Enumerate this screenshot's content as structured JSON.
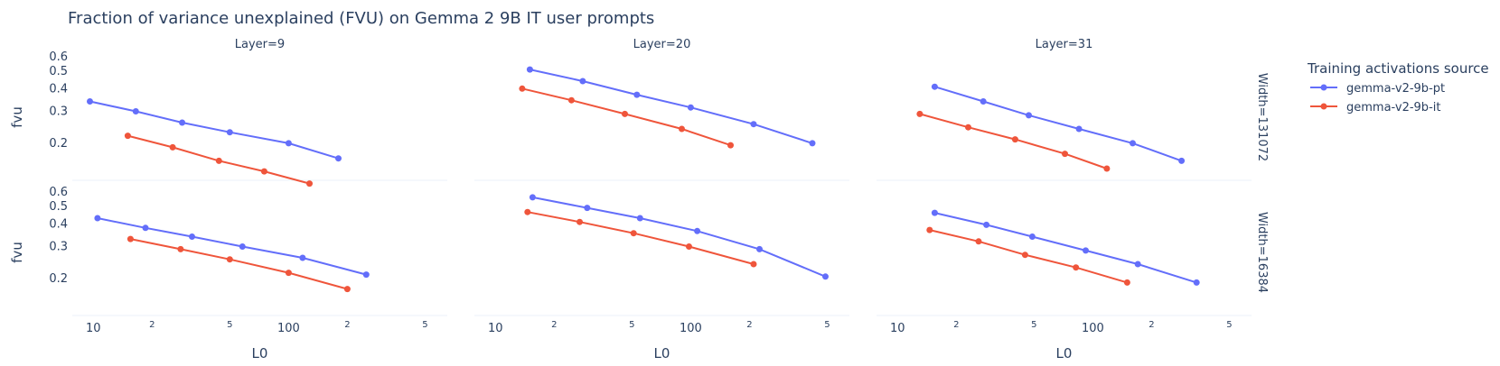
{
  "chart_data": {
    "type": "line",
    "title": "Fraction of variance unexplained (FVU) on Gemma 2 9B IT user prompts",
    "xlabel": "L0",
    "ylabel": "fvu",
    "xscale": "log",
    "yscale": "log",
    "xlim": [
      7.8,
      650
    ],
    "ylim": [
      0.125,
      0.62
    ],
    "x_tick_labels": [
      {
        "value": 10,
        "label": "10"
      },
      {
        "value": 20,
        "label": "2"
      },
      {
        "value": 50,
        "label": "5"
      },
      {
        "value": 100,
        "label": "100"
      },
      {
        "value": 200,
        "label": "2"
      },
      {
        "value": 500,
        "label": "5"
      }
    ],
    "y_tick_labels": [
      {
        "value": 0.2,
        "label": "0.2"
      },
      {
        "value": 0.3,
        "label": "0.3"
      },
      {
        "value": 0.4,
        "label": "0.4"
      },
      {
        "value": 0.5,
        "label": "0.5"
      },
      {
        "value": 0.6,
        "label": "0.6"
      }
    ],
    "legend": {
      "title": "Training activations source",
      "position": "right",
      "entries": [
        {
          "name": "gemma-v2-9b-pt",
          "color": "#636efa"
        },
        {
          "name": "gemma-v2-9b-it",
          "color": "#ef553b"
        }
      ]
    },
    "columns": [
      "Layer=9",
      "Layer=20",
      "Layer=31"
    ],
    "rows": [
      "Width=131072",
      "Width=16384"
    ],
    "panels": [
      {
        "row": 0,
        "col": 0,
        "series": [
          {
            "name": "gemma-v2-9b-pt",
            "x": [
              9.6,
              16.5,
              28.5,
              50,
              100,
              180
            ],
            "y": [
              0.34,
              0.3,
              0.26,
              0.23,
              0.2,
              0.165
            ]
          },
          {
            "name": "gemma-v2-9b-it",
            "x": [
              15,
              25.5,
              44,
              75,
              128
            ],
            "y": [
              0.22,
              0.19,
              0.16,
              0.14,
              0.12
            ]
          }
        ]
      },
      {
        "row": 0,
        "col": 1,
        "series": [
          {
            "name": "gemma-v2-9b-pt",
            "x": [
              15,
              28,
              53,
              100,
              210,
              420
            ],
            "y": [
              0.51,
              0.44,
              0.37,
              0.315,
              0.255,
              0.2
            ]
          },
          {
            "name": "gemma-v2-9b-it",
            "x": [
              13.7,
              24.5,
              46,
              90,
              160
            ],
            "y": [
              0.4,
              0.345,
              0.29,
              0.24,
              0.195
            ]
          }
        ]
      },
      {
        "row": 0,
        "col": 2,
        "series": [
          {
            "name": "gemma-v2-9b-pt",
            "x": [
              15.5,
              27.5,
              47,
              85,
              160,
              285
            ],
            "y": [
              0.41,
              0.34,
              0.285,
              0.24,
              0.2,
              0.16
            ]
          },
          {
            "name": "gemma-v2-9b-it",
            "x": [
              13,
              23,
              40,
              72,
              118
            ],
            "y": [
              0.29,
              0.245,
              0.21,
              0.175,
              0.145
            ]
          }
        ]
      },
      {
        "row": 1,
        "col": 0,
        "series": [
          {
            "name": "gemma-v2-9b-pt",
            "x": [
              10.5,
              18.5,
              32,
              58,
              118,
              250
            ],
            "y": [
              0.43,
              0.38,
              0.34,
              0.3,
              0.26,
              0.21
            ]
          },
          {
            "name": "gemma-v2-9b-it",
            "x": [
              15.5,
              28,
              50,
              100,
              200
            ],
            "y": [
              0.33,
              0.29,
              0.255,
              0.215,
              0.175
            ]
          }
        ]
      },
      {
        "row": 1,
        "col": 1,
        "series": [
          {
            "name": "gemma-v2-9b-pt",
            "x": [
              15.5,
              29.5,
              55,
              108,
              225,
              490
            ],
            "y": [
              0.56,
              0.49,
              0.43,
              0.365,
              0.29,
              0.205
            ]
          },
          {
            "name": "gemma-v2-9b-it",
            "x": [
              14.6,
              27,
              51,
              98,
              210
            ],
            "y": [
              0.465,
              0.41,
              0.355,
              0.3,
              0.24
            ]
          }
        ]
      },
      {
        "row": 1,
        "col": 2,
        "series": [
          {
            "name": "gemma-v2-9b-pt",
            "x": [
              15.5,
              28.5,
              49,
              92,
              170,
              340
            ],
            "y": [
              0.46,
              0.395,
              0.34,
              0.285,
              0.24,
              0.19
            ]
          },
          {
            "name": "gemma-v2-9b-it",
            "x": [
              14.6,
              26,
              45,
              82,
              150
            ],
            "y": [
              0.37,
              0.32,
              0.27,
              0.23,
              0.19
            ]
          }
        ]
      }
    ]
  }
}
